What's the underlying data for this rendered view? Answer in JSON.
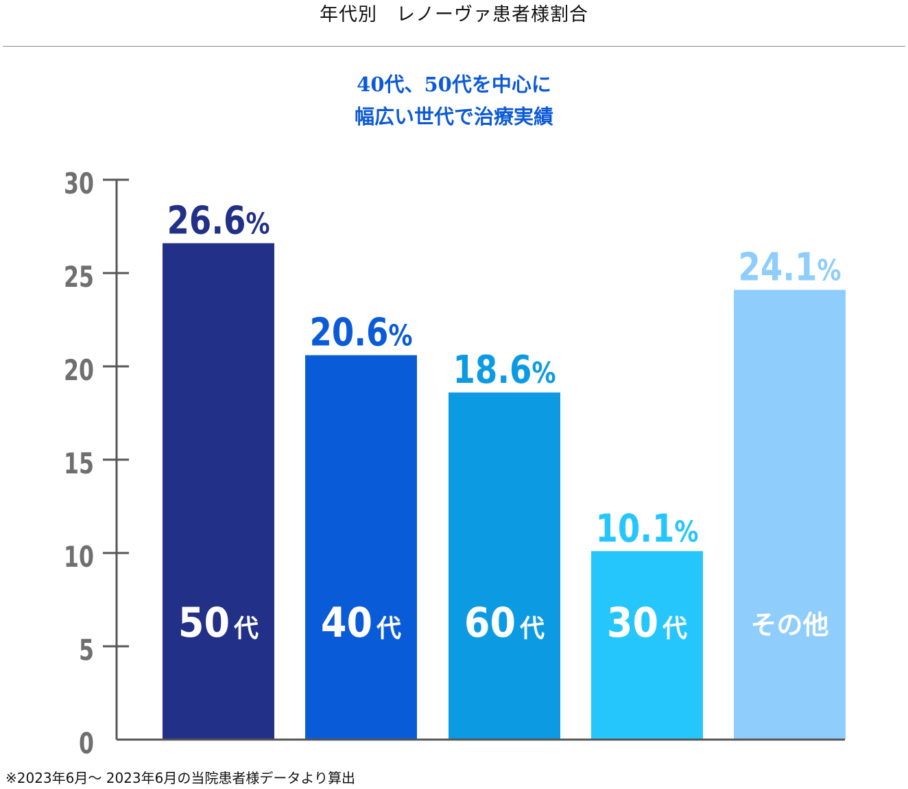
{
  "header": {
    "title": "年代別　レノーヴァ患者様割合"
  },
  "subtitle": {
    "line1": "40代、50代を中心に",
    "line2": "幅広い世代で治療実績",
    "color": "#0c5ad6"
  },
  "chart_data": {
    "type": "bar",
    "ylim": [
      0,
      30
    ],
    "yticks": [
      0,
      5,
      10,
      15,
      20,
      25,
      30
    ],
    "grid": false,
    "categories": [
      {
        "num": "50",
        "suffix": "代"
      },
      {
        "num": "40",
        "suffix": "代"
      },
      {
        "num": "60",
        "suffix": "代"
      },
      {
        "num": "30",
        "suffix": "代"
      },
      {
        "num": "",
        "suffix": "その他"
      }
    ],
    "values": [
      26.6,
      20.6,
      18.6,
      10.1,
      24.1
    ],
    "value_labels": [
      "26.6",
      "20.6",
      "18.6",
      "10.1",
      "24.1"
    ],
    "value_unit": "%",
    "colors": [
      "#223087",
      "#0a5bd8",
      "#0c9be3",
      "#25c6fb",
      "#8fcdfd"
    ],
    "axis_color": "#555555",
    "tick_label_color": "#6f6f6f"
  },
  "footnote": "※2023年6月〜 2023年6月の当院患者様データより算出"
}
